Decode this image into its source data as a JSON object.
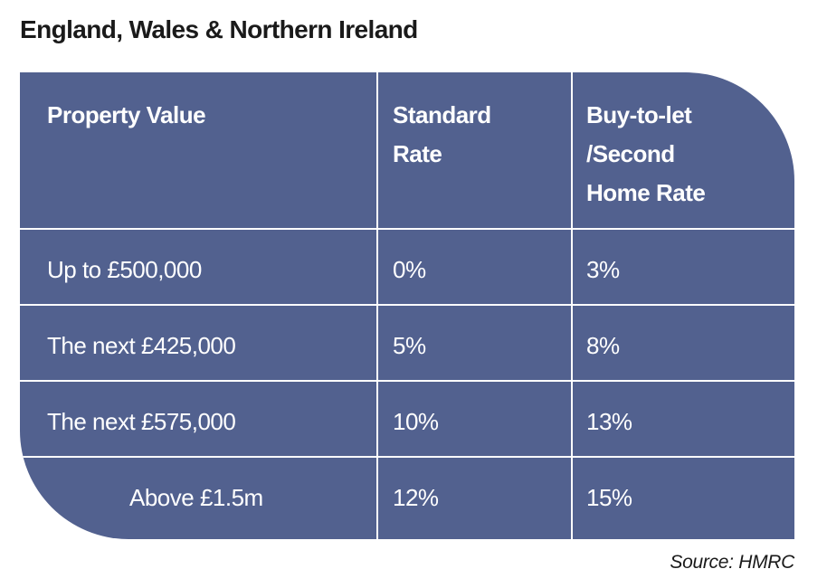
{
  "title": "England, Wales & Northern Ireland",
  "table": {
    "headers": [
      [
        "Property Value"
      ],
      [
        "Standard",
        "Rate"
      ],
      [
        "Buy-to-let",
        "/Second",
        "Home Rate"
      ]
    ],
    "rows": [
      {
        "property_value": "Up to £500,000",
        "standard_rate": "0%",
        "second_home_rate": "3%"
      },
      {
        "property_value": "The next £425,000",
        "standard_rate": "5%",
        "second_home_rate": "8%"
      },
      {
        "property_value": "The next £575,000",
        "standard_rate": "10%",
        "second_home_rate": "13%"
      },
      {
        "property_value": "Above £1.5m",
        "standard_rate": "12%",
        "second_home_rate": "15%"
      }
    ]
  },
  "source": "Source: HMRC",
  "colors": {
    "table_fill": "#52618f",
    "grid_line": "#ffffff",
    "text_on_fill": "#ffffff",
    "title_text": "#1a1a1a"
  }
}
